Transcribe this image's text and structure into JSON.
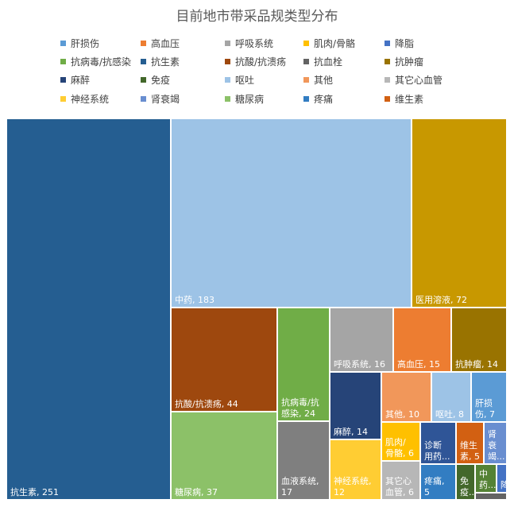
{
  "chart_data": {
    "type": "treemap",
    "title": "目前地市带采品规类型分布",
    "legend": [
      "肝损伤",
      "高血压",
      "呼吸系统",
      "肌肉/骨骼",
      "降脂",
      "抗病毒/抗感染",
      "抗生素",
      "抗酸/抗溃疡",
      "抗血栓",
      "抗肿瘤",
      "麻醉",
      "免疫",
      "呕吐",
      "其他",
      "其它心血管",
      "神经系统",
      "肾衰竭",
      "糖尿病",
      "疼痛",
      "维生素"
    ],
    "legend_colors": [
      "#5B9BD5",
      "#ED7D31",
      "#A5A5A5",
      "#FFC000",
      "#4472C4",
      "#70AD47",
      "#255E91",
      "#9E480E",
      "#636363",
      "#997300",
      "#264478",
      "#43682B",
      "#9DC3E6",
      "#F1975A",
      "#B7B7B7",
      "#FFCD33",
      "#698ED0",
      "#8CC168",
      "#327DC2",
      "#D26012"
    ],
    "items": [
      {
        "name": "抗生素",
        "value": 251,
        "label": "抗生素, 251",
        "color": "#255E91"
      },
      {
        "name": "中药",
        "value": 183,
        "label": "中药, 183",
        "color": "#9DC3E6"
      },
      {
        "name": "医用溶液",
        "value": 72,
        "label": "医用溶液, 72",
        "color": "#C89800"
      },
      {
        "name": "抗酸/抗溃疡",
        "value": 44,
        "label": "抗酸/抗溃疡, 44",
        "color": "#9E480E"
      },
      {
        "name": "糖尿病",
        "value": 37,
        "label": "糖尿病, 37",
        "color": "#8CC168"
      },
      {
        "name": "抗病毒/抗感染",
        "value": 24,
        "label": "抗病毒/抗感染, 24",
        "color": "#70AD47"
      },
      {
        "name": "血液系统",
        "value": 17,
        "label": "血液系统, 17",
        "color": "#7F7F7F"
      },
      {
        "name": "呼吸系统",
        "value": 16,
        "label": "呼吸系统, 16",
        "color": "#A5A5A5"
      },
      {
        "name": "高血压",
        "value": 15,
        "label": "高血压, 15",
        "color": "#ED7D31"
      },
      {
        "name": "抗肿瘤",
        "value": 14,
        "label": "抗肿瘤, 14",
        "color": "#997300"
      },
      {
        "name": "麻醉",
        "value": 14,
        "label": "麻醉, 14",
        "color": "#264478"
      },
      {
        "name": "神经系统",
        "value": 12,
        "label": "神经系统, 12",
        "color": "#FFCD33"
      },
      {
        "name": "其他",
        "value": 10,
        "label": "其他, 10",
        "color": "#F1975A"
      },
      {
        "name": "呕吐",
        "value": 8,
        "label": "呕吐, 8",
        "color": "#9DC3E6"
      },
      {
        "name": "肝损伤",
        "value": 7,
        "label": "肝损伤, 7",
        "color": "#5B9BD5"
      },
      {
        "name": "肌肉/骨骼",
        "value": 6,
        "label": "肌肉/骨骼, 6",
        "color": "#FFC000"
      },
      {
        "name": "其它心血管",
        "value": 6,
        "label": "其它心血管, 6",
        "color": "#B7B7B7"
      },
      {
        "name": "诊断用药",
        "value": 5,
        "label": "诊断用药...",
        "color": "#2F5597"
      },
      {
        "name": "维生素",
        "value": 5,
        "label": "维生素, 5",
        "color": "#D26012"
      },
      {
        "name": "疼痛",
        "value": 5,
        "label": "疼痛, 5",
        "color": "#327DC2"
      },
      {
        "name": "肾衰竭",
        "value": 4,
        "label": "肾衰竭...",
        "color": "#698ED0"
      },
      {
        "name": "免疫",
        "value": 3,
        "label": "免疫...",
        "color": "#43682B"
      },
      {
        "name": "中药注射剂",
        "value": 2,
        "label": "中药...",
        "color": "#548235"
      },
      {
        "name": "降脂",
        "value": 1,
        "label": "降...",
        "color": "#4472C4"
      },
      {
        "name": "抗血栓",
        "value": 1,
        "label": "",
        "color": "#636363"
      }
    ]
  }
}
